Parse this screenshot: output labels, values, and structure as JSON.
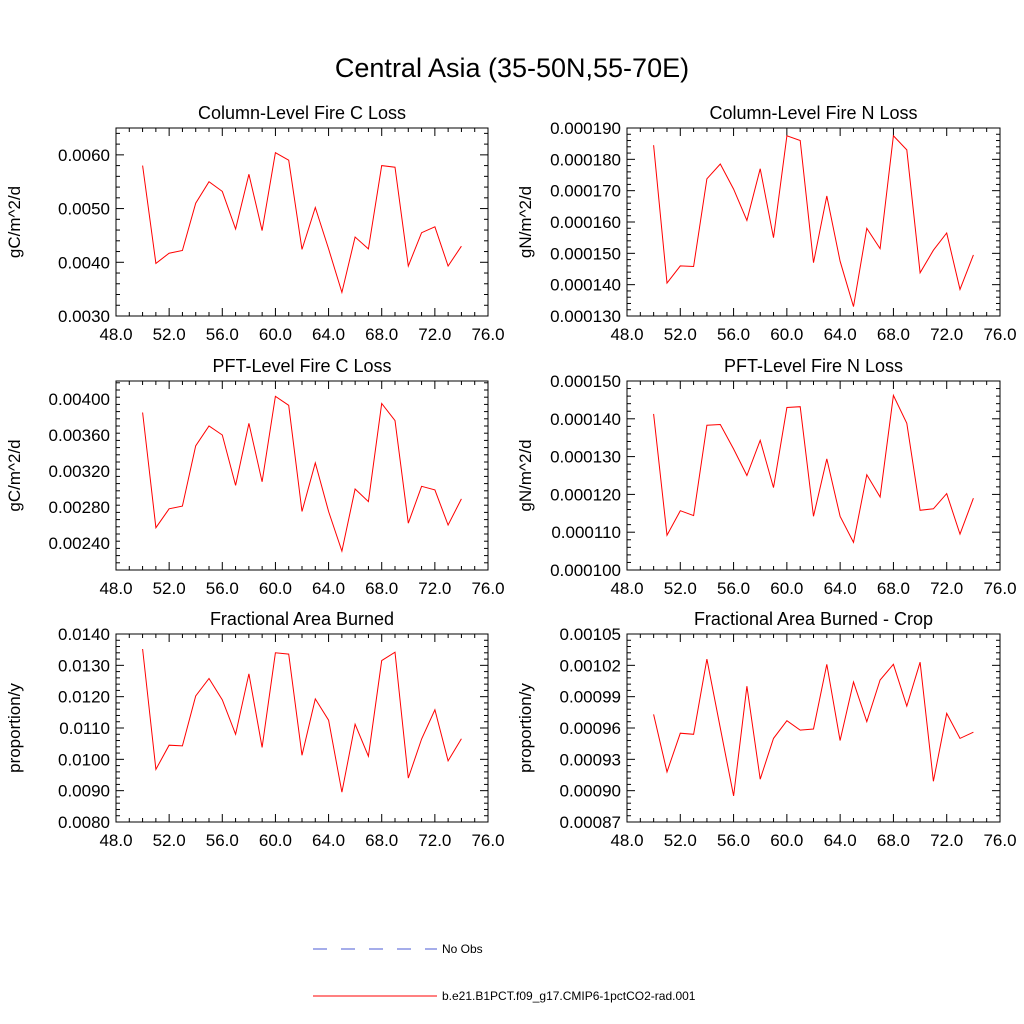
{
  "page": {
    "title": "Central Asia (35-50N,55-70E)"
  },
  "legend": {
    "items": [
      {
        "label": "No Obs",
        "color": "#4b5bd6",
        "dash": "dashed"
      },
      {
        "label": "b.e21.B1PCT.f09_g17.CMIP6-1pctCO2-rad.001",
        "color": "#ff0000",
        "dash": "solid"
      }
    ]
  },
  "chart_data": [
    {
      "type": "line",
      "title": "Column-Level Fire C Loss",
      "xlabel": "",
      "ylabel": "gC/m^2/d",
      "xlim": [
        48,
        76
      ],
      "ylim": [
        0.003,
        0.0065
      ],
      "xticks": [
        "48.0",
        "52.0",
        "56.0",
        "60.0",
        "64.0",
        "68.0",
        "72.0",
        "76.0"
      ],
      "xtick_values": [
        48,
        52,
        56,
        60,
        64,
        68,
        72,
        76
      ],
      "yticks": [
        "0.0030",
        "0.0040",
        "0.0050",
        "0.0060"
      ],
      "ytick_values": [
        0.003,
        0.004,
        0.005,
        0.006
      ],
      "x": [
        50,
        51,
        52,
        53,
        54,
        55,
        56,
        57,
        58,
        59,
        60,
        61,
        62,
        63,
        64,
        65,
        66,
        67,
        68,
        69,
        70,
        71,
        72,
        73,
        74
      ],
      "series": [
        {
          "color": "#ff0000",
          "values": [
            0.0058,
            0.00398,
            0.00417,
            0.00422,
            0.0051,
            0.0055,
            0.00532,
            0.00462,
            0.00564,
            0.00459,
            0.00604,
            0.0059,
            0.00424,
            0.00502,
            0.00425,
            0.00344,
            0.00447,
            0.00425,
            0.0058,
            0.00577,
            0.00393,
            0.00455,
            0.00466,
            0.00393,
            0.0043
          ]
        }
      ]
    },
    {
      "type": "line",
      "title": "Column-Level Fire N Loss",
      "xlabel": "",
      "ylabel": "gN/m^2/d",
      "xlim": [
        48,
        76
      ],
      "ylim": [
        0.00013,
        0.00019
      ],
      "xticks": [
        "48.0",
        "52.0",
        "56.0",
        "60.0",
        "64.0",
        "68.0",
        "72.0",
        "76.0"
      ],
      "xtick_values": [
        48,
        52,
        56,
        60,
        64,
        68,
        72,
        76
      ],
      "yticks": [
        "0.000130",
        "0.000140",
        "0.000150",
        "0.000160",
        "0.000170",
        "0.000180",
        "0.000190"
      ],
      "ytick_values": [
        0.00013,
        0.00014,
        0.00015,
        0.00016,
        0.00017,
        0.00018,
        0.00019
      ],
      "x": [
        50,
        51,
        52,
        53,
        54,
        55,
        56,
        57,
        58,
        59,
        60,
        61,
        62,
        63,
        64,
        65,
        66,
        67,
        68,
        69,
        70,
        71,
        72,
        73,
        74
      ],
      "series": [
        {
          "color": "#ff0000",
          "values": [
            0.0001845,
            0.0001405,
            0.000146,
            0.0001458,
            0.0001738,
            0.0001785,
            0.0001705,
            0.0001605,
            0.000177,
            0.000155,
            0.0001875,
            0.000186,
            0.000147,
            0.0001683,
            0.0001475,
            0.000133,
            0.000158,
            0.0001515,
            0.0001875,
            0.000183,
            0.0001438,
            0.000151,
            0.0001565,
            0.0001385,
            0.0001495
          ]
        }
      ]
    },
    {
      "type": "line",
      "title": "PFT-Level Fire C Loss",
      "xlabel": "",
      "ylabel": "gC/m^2/d",
      "xlim": [
        48,
        76
      ],
      "ylim": [
        0.0021,
        0.0042
      ],
      "xticks": [
        "48.0",
        "52.0",
        "56.0",
        "60.0",
        "64.0",
        "68.0",
        "72.0",
        "76.0"
      ],
      "xtick_values": [
        48,
        52,
        56,
        60,
        64,
        68,
        72,
        76
      ],
      "yticks": [
        "0.00240",
        "0.00280",
        "0.00320",
        "0.00360",
        "0.00400"
      ],
      "ytick_values": [
        0.0024,
        0.0028,
        0.0032,
        0.0036,
        0.004
      ],
      "x": [
        50,
        51,
        52,
        53,
        54,
        55,
        56,
        57,
        58,
        59,
        60,
        61,
        62,
        63,
        64,
        65,
        66,
        67,
        68,
        69,
        70,
        71,
        72,
        73,
        74
      ],
      "series": [
        {
          "color": "#ff0000",
          "values": [
            0.00385,
            0.00257,
            0.00278,
            0.00281,
            0.00348,
            0.0037,
            0.0036,
            0.00304,
            0.00373,
            0.00308,
            0.00403,
            0.00393,
            0.00275,
            0.00329,
            0.00275,
            0.00231,
            0.003,
            0.00286,
            0.00395,
            0.00376,
            0.00262,
            0.00303,
            0.00299,
            0.0026,
            0.00289
          ]
        }
      ]
    },
    {
      "type": "line",
      "title": "PFT-Level Fire N Loss",
      "xlabel": "",
      "ylabel": "gN/m^2/d",
      "xlim": [
        48,
        76
      ],
      "ylim": [
        0.0001,
        0.00015
      ],
      "xticks": [
        "48.0",
        "52.0",
        "56.0",
        "60.0",
        "64.0",
        "68.0",
        "72.0",
        "76.0"
      ],
      "xtick_values": [
        48,
        52,
        56,
        60,
        64,
        68,
        72,
        76
      ],
      "yticks": [
        "0.000100",
        "0.000110",
        "0.000120",
        "0.000130",
        "0.000140",
        "0.000150"
      ],
      "ytick_values": [
        0.0001,
        0.00011,
        0.00012,
        0.00013,
        0.00014,
        0.00015
      ],
      "x": [
        50,
        51,
        52,
        53,
        54,
        55,
        56,
        57,
        58,
        59,
        60,
        61,
        62,
        63,
        64,
        65,
        66,
        67,
        68,
        69,
        70,
        71,
        72,
        73,
        74
      ],
      "series": [
        {
          "color": "#ff0000",
          "values": [
            0.0001413,
            0.0001092,
            0.0001157,
            0.0001144,
            0.0001383,
            0.0001385,
            0.000132,
            0.000125,
            0.0001343,
            0.0001218,
            0.000143,
            0.0001432,
            0.0001142,
            0.0001294,
            0.0001142,
            0.0001073,
            0.0001252,
            0.0001193,
            0.0001462,
            0.0001388,
            0.0001158,
            0.0001162,
            0.0001202,
            0.0001095,
            0.000119
          ]
        }
      ]
    },
    {
      "type": "line",
      "title": "Fractional Area Burned",
      "xlabel": "",
      "ylabel": "proportion/y",
      "xlim": [
        48,
        76
      ],
      "ylim": [
        0.008,
        0.014
      ],
      "xticks": [
        "48.0",
        "52.0",
        "56.0",
        "60.0",
        "64.0",
        "68.0",
        "72.0",
        "76.0"
      ],
      "xtick_values": [
        48,
        52,
        56,
        60,
        64,
        68,
        72,
        76
      ],
      "yticks": [
        "0.0080",
        "0.0090",
        "0.0100",
        "0.0110",
        "0.0120",
        "0.0130",
        "0.0140"
      ],
      "ytick_values": [
        0.008,
        0.009,
        0.01,
        0.011,
        0.012,
        0.013,
        0.014
      ],
      "x": [
        50,
        51,
        52,
        53,
        54,
        55,
        56,
        57,
        58,
        59,
        60,
        61,
        62,
        63,
        64,
        65,
        66,
        67,
        68,
        69,
        70,
        71,
        72,
        73,
        74
      ],
      "series": [
        {
          "color": "#ff0000",
          "values": [
            0.01352,
            0.00968,
            0.01045,
            0.01043,
            0.01202,
            0.01258,
            0.0119,
            0.0108,
            0.01273,
            0.01038,
            0.0134,
            0.01336,
            0.01013,
            0.01193,
            0.01125,
            0.00895,
            0.01112,
            0.0101,
            0.01315,
            0.01342,
            0.0094,
            0.01065,
            0.01158,
            0.00995,
            0.01066
          ]
        }
      ]
    },
    {
      "type": "line",
      "title": "Fractional Area Burned - Crop",
      "xlabel": "",
      "ylabel": "proportion/y",
      "xlim": [
        48,
        76
      ],
      "ylim": [
        0.00087,
        0.00105
      ],
      "xticks": [
        "48.0",
        "52.0",
        "56.0",
        "60.0",
        "64.0",
        "68.0",
        "72.0",
        "76.0"
      ],
      "xtick_values": [
        48,
        52,
        56,
        60,
        64,
        68,
        72,
        76
      ],
      "yticks": [
        "0.00087",
        "0.00090",
        "0.00093",
        "0.00096",
        "0.00099",
        "0.00102",
        "0.00105"
      ],
      "ytick_values": [
        0.00087,
        0.0009,
        0.00093,
        0.00096,
        0.00099,
        0.00102,
        0.00105
      ],
      "x": [
        50,
        51,
        52,
        53,
        54,
        55,
        56,
        57,
        58,
        59,
        60,
        61,
        62,
        63,
        64,
        65,
        66,
        67,
        68,
        69,
        70,
        71,
        72,
        73,
        74
      ],
      "series": [
        {
          "color": "#ff0000",
          "values": [
            0.000973,
            0.000918,
            0.000955,
            0.000954,
            0.001026,
            0.00096,
            0.000895,
            0.001,
            0.000911,
            0.00095,
            0.000967,
            0.000958,
            0.000959,
            0.001021,
            0.000948,
            0.001004,
            0.000966,
            0.001006,
            0.001021,
            0.000981,
            0.001023,
            0.000909,
            0.000974,
            0.00095,
            0.000956
          ]
        }
      ]
    }
  ]
}
